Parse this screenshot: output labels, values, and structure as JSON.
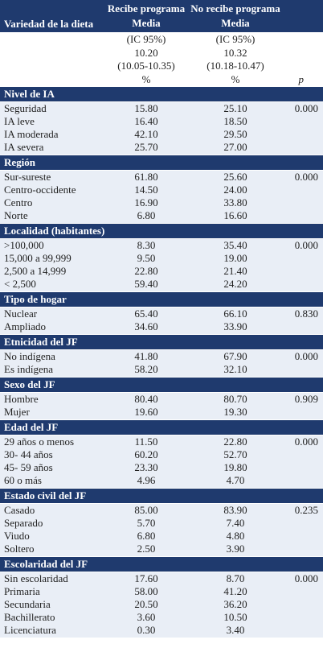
{
  "header": {
    "label": "Variedad de la dieta",
    "columns": [
      [
        "Recibe programa",
        "Media"
      ],
      [
        "No recibe programa",
        "Media"
      ]
    ]
  },
  "summary": [
    [
      "(IC 95%)",
      "(IC 95%)"
    ],
    [
      "10.20",
      "10.32"
    ],
    [
      "(10.05-10.35)",
      "(10.18-10.47)"
    ],
    [
      "%",
      "%",
      "p"
    ]
  ],
  "sections": [
    {
      "title": "Nivel de IA",
      "rows": [
        [
          "Seguridad",
          "15.80",
          "25.10",
          "0.000"
        ],
        [
          "IA leve",
          "16.40",
          "18.50"
        ],
        [
          "IA moderada",
          "42.10",
          "29.50"
        ],
        [
          "IA severa",
          "25.70",
          "27.00"
        ]
      ]
    },
    {
      "title": "Región",
      "rows": [
        [
          "Sur-sureste",
          "61.80",
          "25.60",
          "0.000"
        ],
        [
          "Centro-occidente",
          "14.50",
          "24.00"
        ],
        [
          "Centro",
          "16.90",
          "33.80"
        ],
        [
          "Norte",
          "6.80",
          "16.60"
        ]
      ]
    },
    {
      "title": "Localidad (habitantes)",
      "rows": [
        [
          ">100,000",
          "8.30",
          "35.40",
          "0.000"
        ],
        [
          "15,000 a 99,999",
          "9.50",
          "19.00"
        ],
        [
          "2,500 a 14,999",
          "22.80",
          "21.40"
        ],
        [
          "< 2,500",
          "59.40",
          "24.20"
        ]
      ]
    },
    {
      "title": "Tipo de hogar",
      "rows": [
        [
          "Nuclear",
          "65.40",
          "66.10",
          "0.830"
        ],
        [
          "Ampliado",
          "34.60",
          "33.90"
        ]
      ]
    },
    {
      "title": "Etnicidad del JF",
      "rows": [
        [
          "No indígena",
          "41.80",
          "67.90",
          "0.000"
        ],
        [
          "Es indígena",
          "58.20",
          "32.10"
        ]
      ]
    },
    {
      "title": "Sexo del JF",
      "rows": [
        [
          "Hombre",
          "80.40",
          "80.70",
          "0.909"
        ],
        [
          "Mujer",
          "19.60",
          "19.30"
        ]
      ]
    },
    {
      "title": "Edad del JF",
      "rows": [
        [
          "29 años o menos",
          "11.50",
          "22.80",
          "0.000"
        ],
        [
          "30- 44 años",
          "60.20",
          "52.70"
        ],
        [
          "45- 59 años",
          "23.30",
          "19.80"
        ],
        [
          "60 o más",
          "4.96",
          "4.70"
        ]
      ]
    },
    {
      "title": "Estado civil del JF",
      "rows": [
        [
          "Casado",
          "85.00",
          "83.90",
          "0.235"
        ],
        [
          "Separado",
          "5.70",
          "7.40"
        ],
        [
          "Viudo",
          "6.80",
          "4.80"
        ],
        [
          "Soltero",
          "2.50",
          "3.90"
        ]
      ]
    },
    {
      "title": "Escolaridad del JF",
      "rows": [
        [
          "Sin escolaridad",
          "17.60",
          "8.70",
          "0.000"
        ],
        [
          "Primaria",
          "58.00",
          "41.20"
        ],
        [
          "Secundaria",
          "20.50",
          "36.20"
        ],
        [
          "Bachillerato",
          "3.60",
          "10.50"
        ],
        [
          "Licenciatura",
          "0.30",
          "3.40"
        ]
      ]
    }
  ]
}
